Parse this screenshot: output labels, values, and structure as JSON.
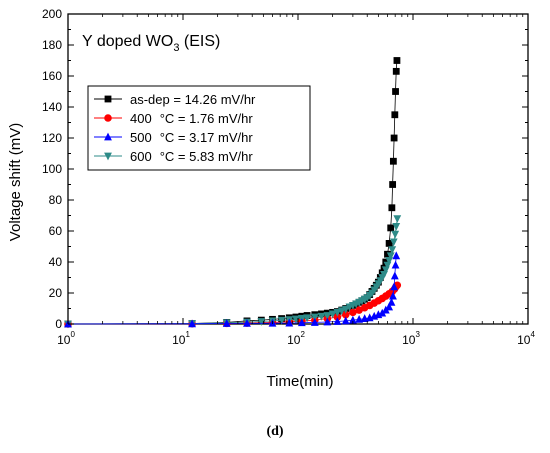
{
  "chart_data": {
    "type": "scatter",
    "title_main": "Y doped WO",
    "title_sub": "3",
    "title_tail": " (EIS)",
    "xlabel": "Time(min)",
    "ylabel": "Voltage shift (mV)",
    "xscale": "log",
    "xlim": [
      1,
      10000
    ],
    "ylim": [
      0,
      200
    ],
    "x_ticks": [
      {
        "base": "10",
        "exp": "0"
      },
      {
        "base": "10",
        "exp": "1"
      },
      {
        "base": "10",
        "exp": "2"
      },
      {
        "base": "10",
        "exp": "3"
      },
      {
        "base": "10",
        "exp": "4"
      }
    ],
    "y_ticks": [
      0,
      20,
      40,
      60,
      80,
      100,
      120,
      140,
      160,
      180,
      200
    ],
    "grid": false,
    "legend_position": "upper-left",
    "series": [
      {
        "name": "as-dep = 14.26 mV/hr",
        "legend_num": "as-dep = 14.26 mV/hr",
        "legend_rest": "",
        "marker": "square",
        "color": "#000000",
        "points": [
          [
            1,
            0
          ],
          [
            12,
            0.3
          ],
          [
            24,
            1
          ],
          [
            36,
            2
          ],
          [
            48,
            2.5
          ],
          [
            60,
            3
          ],
          [
            72,
            3.5
          ],
          [
            84,
            4
          ],
          [
            96,
            4.5
          ],
          [
            108,
            5
          ],
          [
            120,
            5.5
          ],
          [
            140,
            6
          ],
          [
            160,
            6.5
          ],
          [
            180,
            7
          ],
          [
            200,
            7.5
          ],
          [
            220,
            8
          ],
          [
            240,
            9
          ],
          [
            260,
            10
          ],
          [
            280,
            11
          ],
          [
            300,
            12
          ],
          [
            320,
            13
          ],
          [
            340,
            14
          ],
          [
            360,
            15
          ],
          [
            380,
            16
          ],
          [
            400,
            17
          ],
          [
            420,
            19
          ],
          [
            440,
            21
          ],
          [
            460,
            23
          ],
          [
            480,
            25
          ],
          [
            500,
            27
          ],
          [
            520,
            30
          ],
          [
            540,
            33
          ],
          [
            560,
            36
          ],
          [
            580,
            40
          ],
          [
            600,
            45
          ],
          [
            620,
            52
          ],
          [
            640,
            62
          ],
          [
            655,
            75
          ],
          [
            665,
            90
          ],
          [
            675,
            105
          ],
          [
            685,
            120
          ],
          [
            695,
            135
          ],
          [
            705,
            150
          ],
          [
            715,
            163
          ],
          [
            725,
            170
          ]
        ]
      },
      {
        "name": "400 °C = 1.76 mV/hr",
        "legend_num": "400",
        "legend_rest": "°C = 1.76 mV/hr",
        "marker": "circle",
        "color": "#ff0000",
        "points": [
          [
            1,
            0
          ],
          [
            12,
            0.2
          ],
          [
            24,
            0.4
          ],
          [
            36,
            0.6
          ],
          [
            60,
            1
          ],
          [
            84,
            1.4
          ],
          [
            108,
            1.8
          ],
          [
            140,
            2.5
          ],
          [
            180,
            3.5
          ],
          [
            220,
            4.5
          ],
          [
            260,
            6
          ],
          [
            300,
            7.5
          ],
          [
            340,
            9
          ],
          [
            380,
            10.5
          ],
          [
            420,
            12
          ],
          [
            460,
            13.5
          ],
          [
            500,
            15
          ],
          [
            540,
            16.5
          ],
          [
            580,
            18
          ],
          [
            620,
            19.5
          ],
          [
            660,
            21
          ],
          [
            690,
            22.5
          ],
          [
            710,
            24
          ],
          [
            730,
            25
          ]
        ]
      },
      {
        "name": "500 °C = 3.17 mV/hr",
        "legend_num": "500",
        "legend_rest": "°C = 3.17 mV/hr",
        "marker": "triangle-up",
        "color": "#0000ff",
        "points": [
          [
            1,
            0
          ],
          [
            12,
            0.1
          ],
          [
            24,
            0.3
          ],
          [
            36,
            0.4
          ],
          [
            60,
            0.5
          ],
          [
            84,
            0.6
          ],
          [
            108,
            0.8
          ],
          [
            140,
            1
          ],
          [
            180,
            1.3
          ],
          [
            220,
            1.6
          ],
          [
            260,
            2
          ],
          [
            300,
            2.5
          ],
          [
            340,
            3
          ],
          [
            380,
            3.5
          ],
          [
            420,
            4
          ],
          [
            460,
            5
          ],
          [
            500,
            6
          ],
          [
            540,
            7
          ],
          [
            580,
            9
          ],
          [
            620,
            11
          ],
          [
            650,
            14
          ],
          [
            670,
            18
          ],
          [
            685,
            24
          ],
          [
            695,
            31
          ],
          [
            705,
            38
          ],
          [
            715,
            44
          ]
        ]
      },
      {
        "name": "600 °C = 5.83 mV/hr",
        "legend_num": "600",
        "legend_rest": "°C = 5.83 mV/hr",
        "marker": "triangle-down",
        "color": "#2e8b88",
        "points": [
          [
            1,
            0
          ],
          [
            12,
            0.3
          ],
          [
            24,
            0.8
          ],
          [
            36,
            1.2
          ],
          [
            48,
            1.6
          ],
          [
            60,
            2
          ],
          [
            72,
            2.4
          ],
          [
            84,
            2.8
          ],
          [
            96,
            3.2
          ],
          [
            108,
            3.6
          ],
          [
            120,
            4
          ],
          [
            140,
            4.5
          ],
          [
            160,
            5
          ],
          [
            180,
            5.5
          ],
          [
            200,
            6.5
          ],
          [
            220,
            7.5
          ],
          [
            240,
            8.5
          ],
          [
            260,
            9.5
          ],
          [
            280,
            11
          ],
          [
            300,
            12
          ],
          [
            320,
            13
          ],
          [
            340,
            14
          ],
          [
            360,
            15
          ],
          [
            380,
            16
          ],
          [
            400,
            17
          ],
          [
            420,
            18.5
          ],
          [
            440,
            20
          ],
          [
            460,
            22
          ],
          [
            480,
            24
          ],
          [
            500,
            26
          ],
          [
            520,
            28
          ],
          [
            540,
            30
          ],
          [
            560,
            32
          ],
          [
            580,
            35
          ],
          [
            600,
            38
          ],
          [
            620,
            41
          ],
          [
            640,
            44
          ],
          [
            660,
            48
          ],
          [
            680,
            53
          ],
          [
            700,
            58
          ],
          [
            715,
            63
          ],
          [
            730,
            68
          ]
        ]
      }
    ]
  },
  "panel_label": "(d)"
}
